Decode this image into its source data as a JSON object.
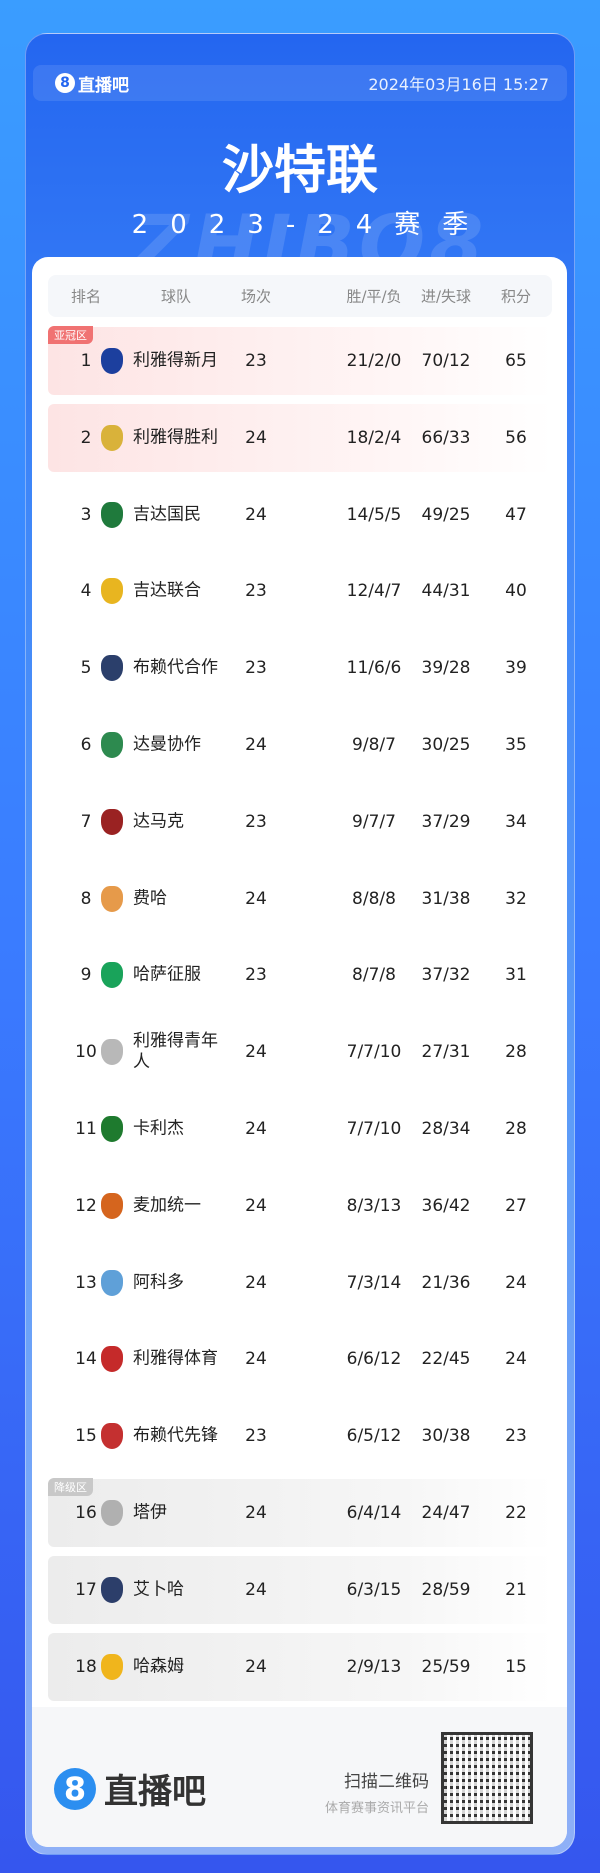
{
  "header": {
    "brand": "直播吧",
    "brand_icon": "8",
    "datetime": "2024年03月16日 15:27"
  },
  "title": "沙特联",
  "season": "2023-24赛季",
  "watermark": "ZHIBO8",
  "table": {
    "columns": [
      "排名",
      "球队",
      "场次",
      "胜/平/负",
      "进/失球",
      "积分"
    ],
    "zones": {
      "acl": "亚冠区",
      "relegation": "降级区"
    },
    "zone_colors": {
      "acl": "#f07272",
      "relegation": "#c8c8c8"
    },
    "rows": [
      {
        "rank": "1",
        "team": "利雅得新月",
        "played": "23",
        "wdl": "21/2/0",
        "goals": "70/12",
        "pts": "65",
        "logo_color": "#1c3f9e"
      },
      {
        "rank": "2",
        "team": "利雅得胜利",
        "played": "24",
        "wdl": "18/2/4",
        "goals": "66/33",
        "pts": "56",
        "logo_color": "#d9b23a"
      },
      {
        "rank": "3",
        "team": "吉达国民",
        "played": "24",
        "wdl": "14/5/5",
        "goals": "49/25",
        "pts": "47",
        "logo_color": "#1f7a3c"
      },
      {
        "rank": "4",
        "team": "吉达联合",
        "played": "23",
        "wdl": "12/4/7",
        "goals": "44/31",
        "pts": "40",
        "logo_color": "#e8b520"
      },
      {
        "rank": "5",
        "team": "布赖代合作",
        "played": "23",
        "wdl": "11/6/6",
        "goals": "39/28",
        "pts": "39",
        "logo_color": "#2b3f6b"
      },
      {
        "rank": "6",
        "team": "达曼协作",
        "played": "24",
        "wdl": "9/8/7",
        "goals": "30/25",
        "pts": "35",
        "logo_color": "#2d8a4f"
      },
      {
        "rank": "7",
        "team": "达马克",
        "played": "23",
        "wdl": "9/7/7",
        "goals": "37/29",
        "pts": "34",
        "logo_color": "#9a2222"
      },
      {
        "rank": "8",
        "team": "费哈",
        "played": "24",
        "wdl": "8/8/8",
        "goals": "31/38",
        "pts": "32",
        "logo_color": "#e69a4a"
      },
      {
        "rank": "9",
        "team": "哈萨征服",
        "played": "23",
        "wdl": "8/7/8",
        "goals": "37/32",
        "pts": "31",
        "logo_color": "#19a35a"
      },
      {
        "rank": "10",
        "team": "利雅得青年人",
        "played": "24",
        "wdl": "7/7/10",
        "goals": "27/31",
        "pts": "28",
        "logo_color": "#b8b8b8"
      },
      {
        "rank": "11",
        "team": "卡利杰",
        "played": "24",
        "wdl": "7/7/10",
        "goals": "28/34",
        "pts": "28",
        "logo_color": "#1e7a2e"
      },
      {
        "rank": "12",
        "team": "麦加统一",
        "played": "24",
        "wdl": "8/3/13",
        "goals": "36/42",
        "pts": "27",
        "logo_color": "#d5651e"
      },
      {
        "rank": "13",
        "team": "阿科多",
        "played": "24",
        "wdl": "7/3/14",
        "goals": "21/36",
        "pts": "24",
        "logo_color": "#5fa0d8"
      },
      {
        "rank": "14",
        "team": "利雅得体育",
        "played": "24",
        "wdl": "6/6/12",
        "goals": "22/45",
        "pts": "24",
        "logo_color": "#c52a2a"
      },
      {
        "rank": "15",
        "team": "布赖代先锋",
        "played": "23",
        "wdl": "6/5/12",
        "goals": "30/38",
        "pts": "23",
        "logo_color": "#c43030"
      },
      {
        "rank": "16",
        "team": "塔伊",
        "played": "24",
        "wdl": "6/4/14",
        "goals": "24/47",
        "pts": "22",
        "logo_color": "#b0b0b0"
      },
      {
        "rank": "17",
        "team": "艾卜哈",
        "played": "24",
        "wdl": "6/3/15",
        "goals": "28/59",
        "pts": "21",
        "logo_color": "#2c3e6a"
      },
      {
        "rank": "18",
        "team": "哈森姆",
        "played": "24",
        "wdl": "2/9/13",
        "goals": "25/59",
        "pts": "15",
        "logo_color": "#f0b51c"
      }
    ]
  },
  "footer": {
    "brand": "直播吧",
    "brand_icon": "8",
    "scan": "扫描二维码",
    "tagline": "体育赛事资讯平台"
  }
}
